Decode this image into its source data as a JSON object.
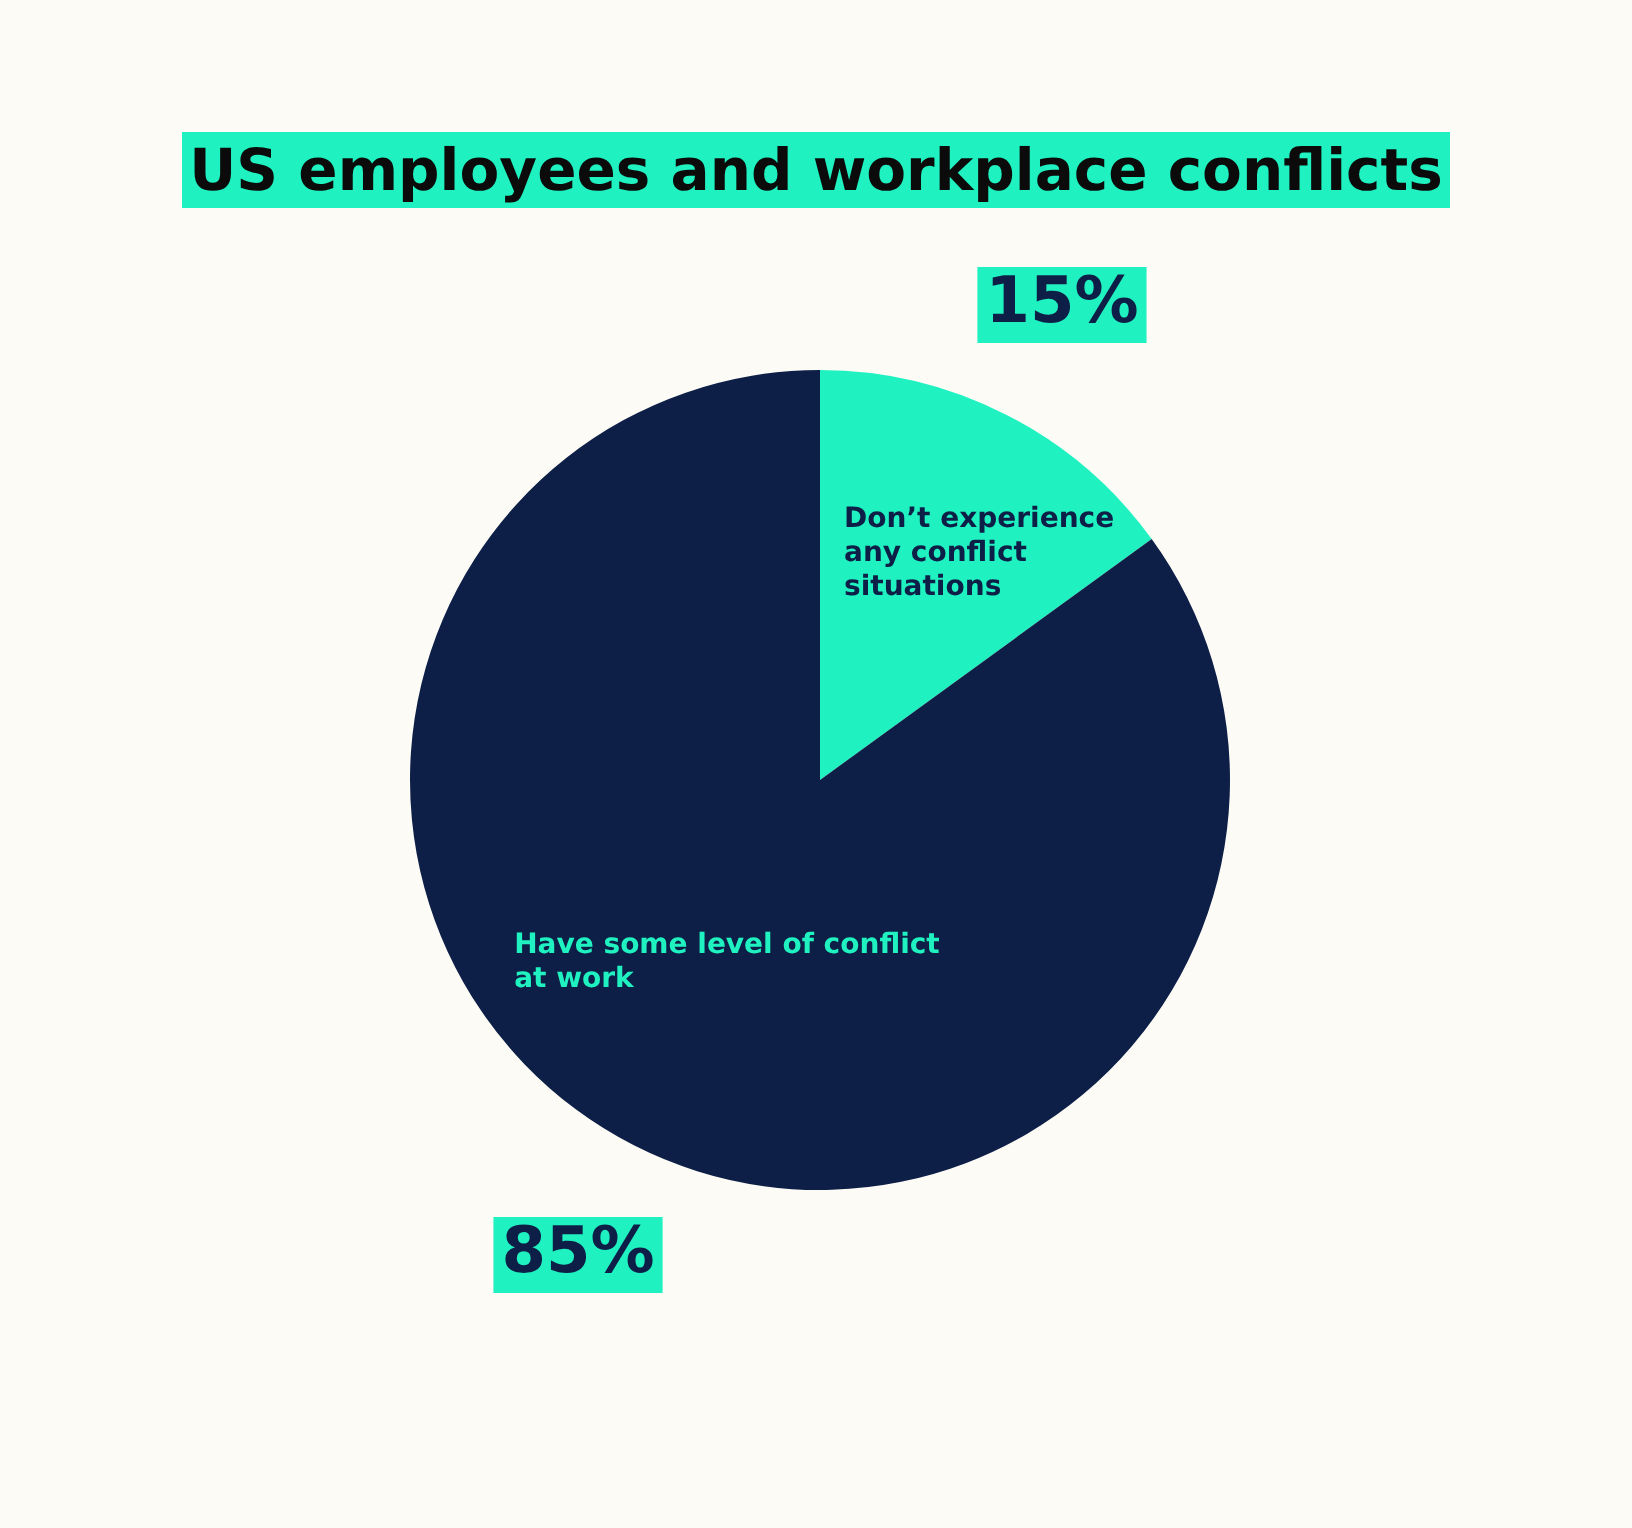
{
  "chart_data": {
    "type": "pie",
    "title": "US employees and workplace conflicts",
    "categories": [
      "Don’t experience any conflict situations",
      "Have some level of conflict at work"
    ],
    "values": [
      15,
      85
    ],
    "colors": [
      "#1ff2c0",
      "#0d1f47"
    ],
    "value_labels": [
      "15%",
      "85%"
    ],
    "legend": false
  }
}
